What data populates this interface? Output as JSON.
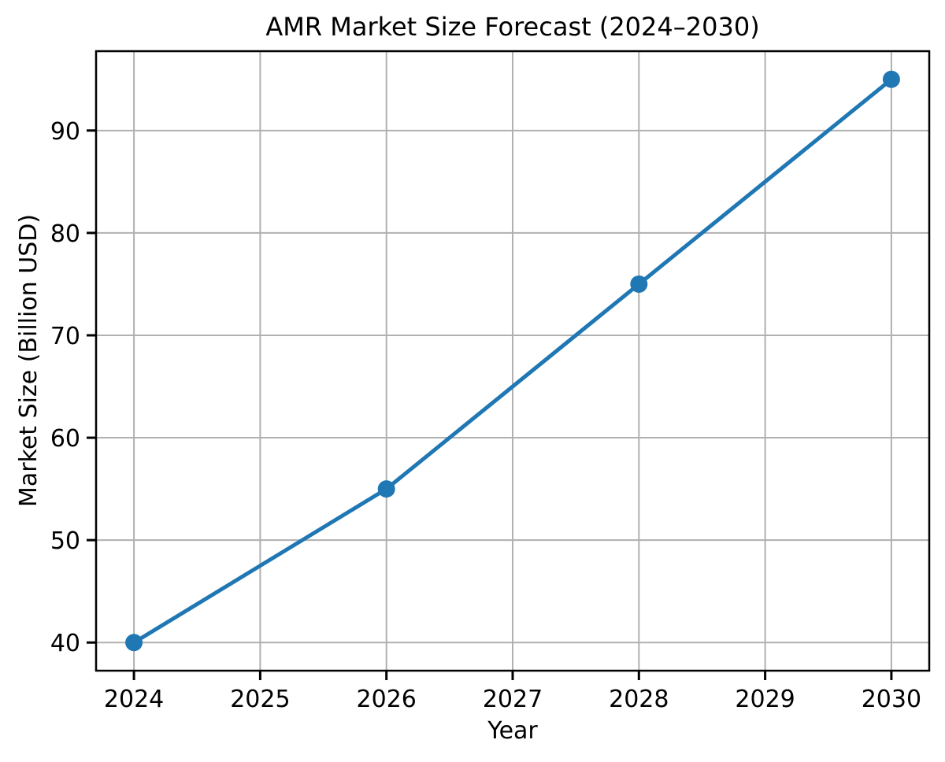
{
  "chart_data": {
    "type": "line",
    "title": "AMR Market Size Forecast (2024–2030)",
    "xlabel": "Year",
    "ylabel": "Market Size (Billion USD)",
    "x": [
      2024,
      2026,
      2028,
      2030
    ],
    "y": [
      40,
      55,
      75,
      95
    ],
    "x_ticks": [
      2024,
      2025,
      2026,
      2027,
      2028,
      2029,
      2030
    ],
    "y_ticks": [
      40,
      50,
      60,
      70,
      80,
      90
    ],
    "xlim": [
      2023.7,
      2030.3
    ],
    "ylim": [
      37.25,
      97.75
    ],
    "grid": true,
    "legend": false,
    "marker": "circle",
    "colors": {
      "line": "#1f77b4",
      "marker": "#1f77b4",
      "grid": "#b0b0b0",
      "spine": "#000000",
      "tick": "#000000",
      "text": "#000000",
      "background": "#ffffff"
    }
  }
}
